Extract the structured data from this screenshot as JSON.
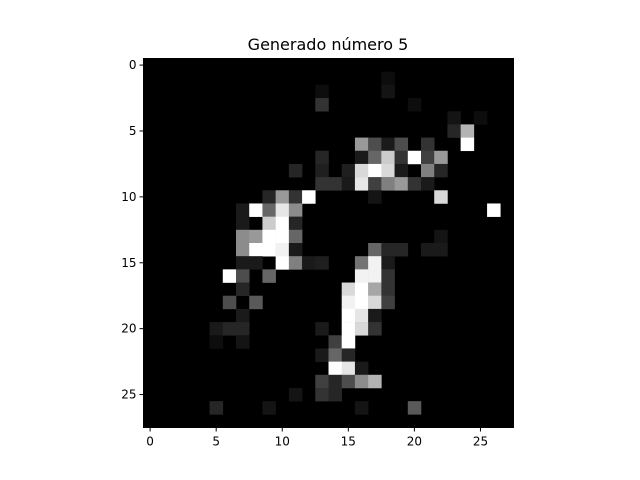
{
  "chart_data": {
    "type": "heatmap",
    "title": "Generado número 5",
    "xlabel": "",
    "ylabel": "",
    "colormap": "gray",
    "rows": 28,
    "cols": 28,
    "xlim": [
      -0.5,
      27.5
    ],
    "ylim": [
      27.5,
      -0.5
    ],
    "x_ticks": [
      0,
      5,
      10,
      15,
      20,
      25
    ],
    "y_ticks": [
      0,
      5,
      10,
      15,
      20,
      25
    ],
    "grid": false,
    "cells": [
      [
        1,
        18,
        0.05
      ],
      [
        2,
        13,
        0.05
      ],
      [
        2,
        18,
        0.08
      ],
      [
        3,
        13,
        0.2
      ],
      [
        3,
        20,
        0.05
      ],
      [
        4,
        23,
        0.08
      ],
      [
        4,
        25,
        0.05
      ],
      [
        5,
        23,
        0.15
      ],
      [
        5,
        24,
        0.7
      ],
      [
        6,
        16,
        0.6
      ],
      [
        6,
        17,
        0.3
      ],
      [
        6,
        18,
        0.1
      ],
      [
        6,
        19,
        0.3
      ],
      [
        6,
        21,
        0.2
      ],
      [
        6,
        24,
        1.0
      ],
      [
        7,
        13,
        0.15
      ],
      [
        7,
        16,
        0.1
      ],
      [
        7,
        17,
        0.4
      ],
      [
        7,
        18,
        0.8
      ],
      [
        7,
        19,
        0.2
      ],
      [
        7,
        20,
        1.0
      ],
      [
        7,
        21,
        0.25
      ],
      [
        7,
        22,
        0.6
      ],
      [
        8,
        11,
        0.15
      ],
      [
        8,
        13,
        0.12
      ],
      [
        8,
        15,
        0.12
      ],
      [
        8,
        16,
        0.85
      ],
      [
        8,
        17,
        1.0
      ],
      [
        8,
        18,
        0.85
      ],
      [
        8,
        19,
        0.1
      ],
      [
        8,
        21,
        0.5
      ],
      [
        8,
        22,
        0.15
      ],
      [
        9,
        13,
        0.2
      ],
      [
        9,
        14,
        0.2
      ],
      [
        9,
        15,
        0.1
      ],
      [
        9,
        16,
        0.9
      ],
      [
        9,
        17,
        0.25
      ],
      [
        9,
        18,
        0.5
      ],
      [
        9,
        19,
        0.6
      ],
      [
        9,
        20,
        0.2
      ],
      [
        9,
        21,
        0.1
      ],
      [
        10,
        9,
        0.15
      ],
      [
        10,
        10,
        0.6
      ],
      [
        10,
        11,
        0.2
      ],
      [
        10,
        12,
        1.0
      ],
      [
        10,
        17,
        0.08
      ],
      [
        10,
        22,
        0.85
      ],
      [
        11,
        7,
        0.1
      ],
      [
        11,
        8,
        1.0
      ],
      [
        11,
        9,
        0.4
      ],
      [
        11,
        10,
        0.9
      ],
      [
        11,
        11,
        0.55
      ],
      [
        11,
        26,
        1.0
      ],
      [
        12,
        7,
        0.1
      ],
      [
        12,
        9,
        0.8
      ],
      [
        12,
        10,
        1.0
      ],
      [
        12,
        11,
        0.15
      ],
      [
        13,
        7,
        0.55
      ],
      [
        13,
        8,
        0.6
      ],
      [
        13,
        9,
        1.0
      ],
      [
        13,
        10,
        1.0
      ],
      [
        13,
        11,
        0.4
      ],
      [
        13,
        22,
        0.08
      ],
      [
        14,
        7,
        0.55
      ],
      [
        14,
        8,
        1.0
      ],
      [
        14,
        9,
        1.0
      ],
      [
        14,
        10,
        0.95
      ],
      [
        14,
        11,
        0.1
      ],
      [
        14,
        17,
        0.4
      ],
      [
        14,
        18,
        0.15
      ],
      [
        14,
        19,
        0.15
      ],
      [
        14,
        21,
        0.1
      ],
      [
        14,
        22,
        0.1
      ],
      [
        15,
        7,
        0.1
      ],
      [
        15,
        8,
        0.1
      ],
      [
        15,
        10,
        1.0
      ],
      [
        15,
        11,
        0.5
      ],
      [
        15,
        12,
        0.1
      ],
      [
        15,
        13,
        0.12
      ],
      [
        15,
        16,
        0.45
      ],
      [
        15,
        17,
        0.95
      ],
      [
        15,
        18,
        0.1
      ],
      [
        16,
        6,
        1.0
      ],
      [
        16,
        7,
        0.3
      ],
      [
        16,
        9,
        0.4
      ],
      [
        16,
        16,
        0.95
      ],
      [
        16,
        17,
        0.95
      ],
      [
        16,
        18,
        0.2
      ],
      [
        17,
        7,
        0.15
      ],
      [
        17,
        15,
        0.85
      ],
      [
        17,
        16,
        1.0
      ],
      [
        17,
        17,
        0.65
      ],
      [
        17,
        18,
        0.2
      ],
      [
        18,
        6,
        0.3
      ],
      [
        18,
        8,
        0.35
      ],
      [
        18,
        15,
        0.95
      ],
      [
        18,
        16,
        1.0
      ],
      [
        18,
        17,
        0.85
      ],
      [
        18,
        18,
        0.25
      ],
      [
        19,
        7,
        0.1
      ],
      [
        19,
        15,
        1.0
      ],
      [
        19,
        16,
        0.9
      ],
      [
        19,
        17,
        0.1
      ],
      [
        20,
        5,
        0.1
      ],
      [
        20,
        6,
        0.15
      ],
      [
        20,
        7,
        0.15
      ],
      [
        20,
        13,
        0.1
      ],
      [
        20,
        15,
        1.0
      ],
      [
        20,
        16,
        0.85
      ],
      [
        20,
        17,
        0.2
      ],
      [
        21,
        5,
        0.05
      ],
      [
        21,
        7,
        0.08
      ],
      [
        21,
        14,
        0.25
      ],
      [
        21,
        15,
        1.0
      ],
      [
        22,
        13,
        0.1
      ],
      [
        22,
        14,
        0.4
      ],
      [
        22,
        15,
        0.15
      ],
      [
        23,
        14,
        1.0
      ],
      [
        23,
        15,
        0.9
      ],
      [
        23,
        16,
        0.1
      ],
      [
        24,
        13,
        0.25
      ],
      [
        24,
        14,
        0.15
      ],
      [
        24,
        15,
        0.3
      ],
      [
        24,
        16,
        0.55
      ],
      [
        24,
        17,
        0.7
      ],
      [
        25,
        11,
        0.08
      ],
      [
        25,
        13,
        0.2
      ],
      [
        25,
        14,
        0.15
      ],
      [
        26,
        5,
        0.15
      ],
      [
        26,
        9,
        0.08
      ],
      [
        26,
        16,
        0.08
      ],
      [
        26,
        20,
        0.35
      ]
    ]
  }
}
